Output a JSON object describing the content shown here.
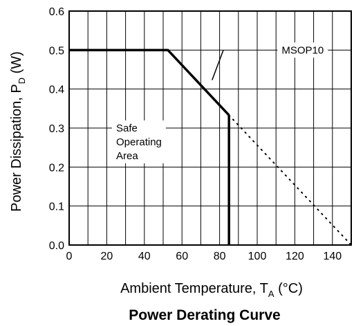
{
  "chart_data": {
    "type": "line",
    "caption": "Power Derating Curve",
    "xlabel": {
      "text": "Ambient Temperature, T",
      "sub": "A",
      "unit": " (°C)"
    },
    "ylabel": {
      "text": "Power Dissipation, P",
      "sub": "D",
      "unit": " (W)"
    },
    "xlim": [
      0,
      150
    ],
    "ylim": [
      0,
      0.6
    ],
    "x_ticks": [
      0,
      20,
      40,
      60,
      80,
      100,
      120,
      140
    ],
    "x_tick_labels": [
      "0",
      "20",
      "40",
      "60",
      "80",
      "100",
      "120",
      "140"
    ],
    "y_ticks": [
      0,
      0.1,
      0.2,
      0.3,
      0.4,
      0.5,
      0.6
    ],
    "y_tick_labels": [
      "0.0",
      "0.1",
      "0.2",
      "0.3",
      "0.4",
      "0.5",
      "0.6"
    ],
    "grid_x": [
      10,
      20,
      30,
      40,
      50,
      60,
      70,
      80,
      90,
      100,
      110,
      120,
      130,
      140
    ],
    "grid_y": [
      0.1,
      0.2,
      0.3,
      0.4,
      0.5
    ],
    "grid": true,
    "series": [
      {
        "name": "MSOP10",
        "style": "solid",
        "x": [
          0,
          52.5,
          85
        ],
        "y": [
          0.5,
          0.5,
          0.333
        ]
      },
      {
        "style": "solid",
        "x": [
          85,
          85
        ],
        "y": [
          0.333,
          0
        ]
      },
      {
        "style": "dotted",
        "x": [
          85,
          150
        ],
        "y": [
          0.333,
          0
        ]
      }
    ],
    "annotations": [
      {
        "lines": [
          "MSOP10"
        ],
        "x": 113,
        "y": 0.5
      },
      {
        "lines": [
          "Safe",
          "Operating",
          "Area"
        ],
        "x": 25,
        "y": 0.3
      }
    ],
    "leader": {
      "from": [
        82,
        0.5
      ],
      "to": [
        76,
        0.423
      ]
    }
  }
}
